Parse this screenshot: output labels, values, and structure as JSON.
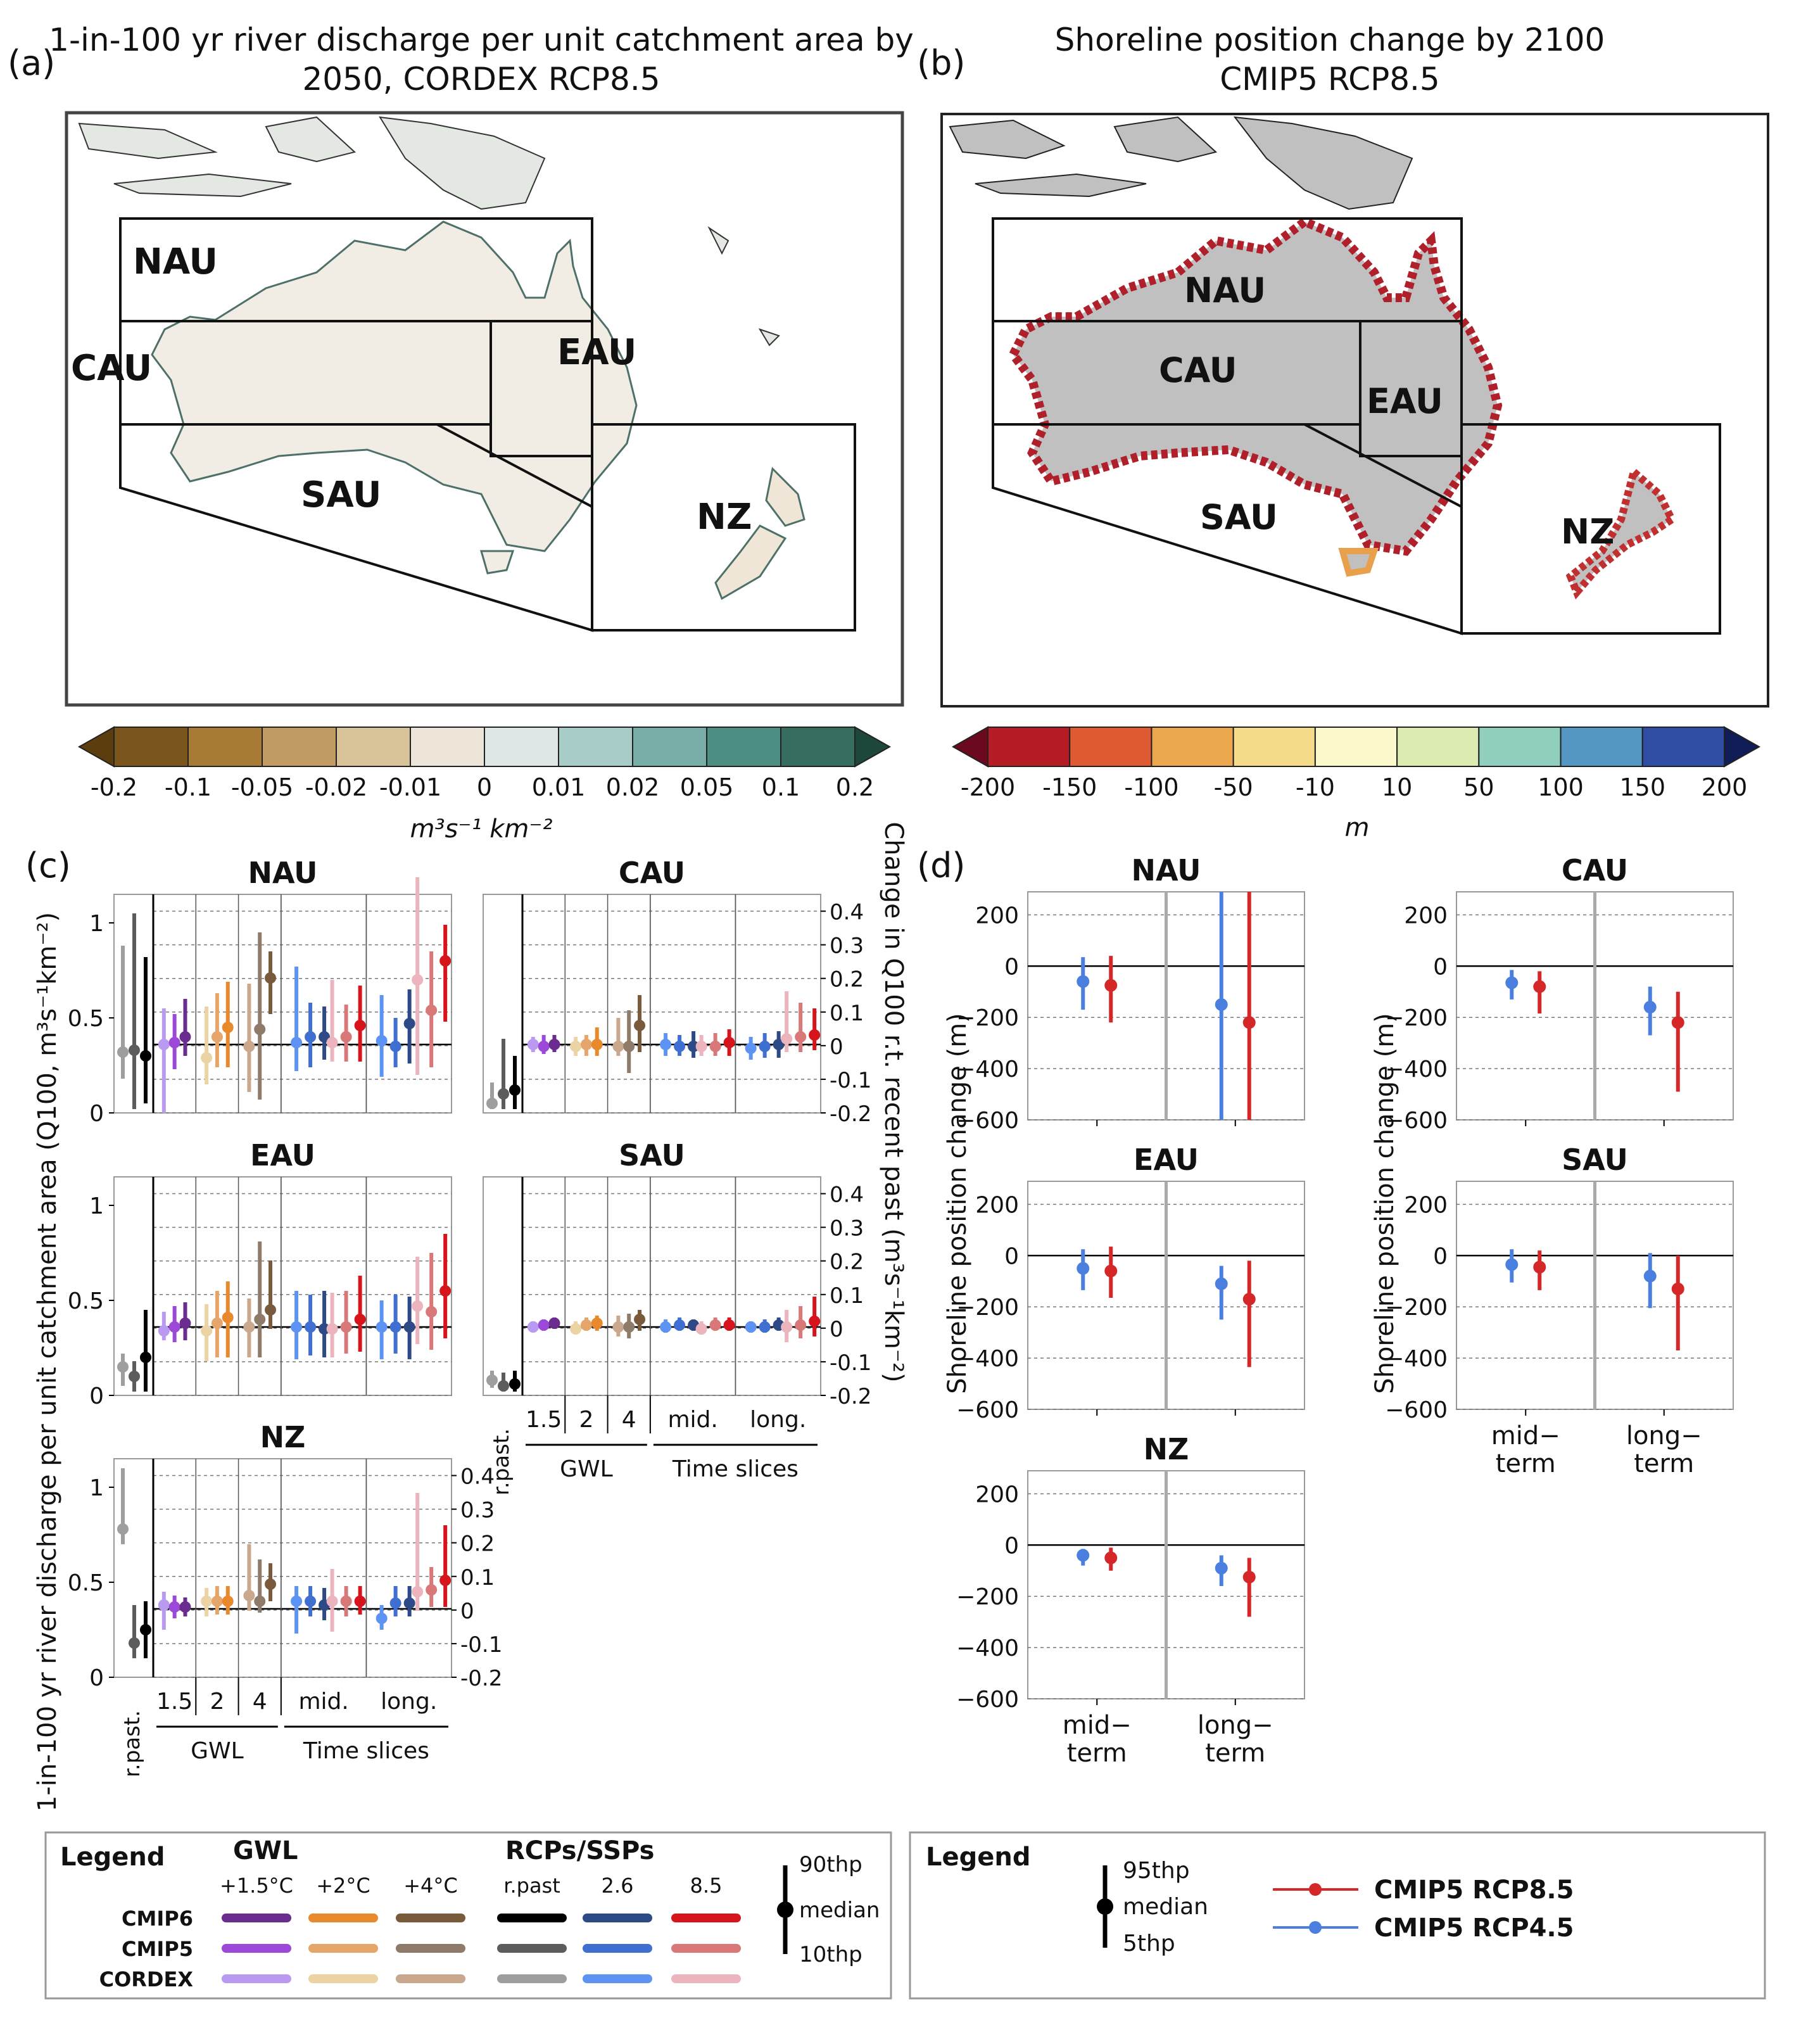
{
  "panel_a": {
    "letter": "(a)",
    "title_line1": "1-in-100 yr river discharge per unit catchment area by",
    "title_line2": "2050, CORDEX RCP8.5",
    "regions": [
      "NAU",
      "CAU",
      "EAU",
      "SAU",
      "NZ"
    ],
    "colorbar": {
      "colors": [
        "#5b3d0e",
        "#7a561c",
        "#a77a36",
        "#c29b64",
        "#d9c49a",
        "#ece5d8",
        "#dfe7e7",
        "#a8ccc7",
        "#78aea7",
        "#4e8d82",
        "#376c61",
        "#1d473b"
      ],
      "ticks": [
        "-0.2",
        "-0.1",
        "-0.05",
        "-0.02",
        "-0.01",
        "0",
        "0.01",
        "0.02",
        "0.05",
        "0.1",
        "0.2"
      ],
      "unit": "m³s⁻¹ km⁻²"
    }
  },
  "panel_b": {
    "letter": "(b)",
    "title_line1": "Shoreline position change by 2100",
    "title_line2": "CMIP5 RCP8.5",
    "regions": [
      "NAU",
      "CAU",
      "EAU",
      "SAU",
      "NZ"
    ],
    "colorbar": {
      "colors": [
        "#6b0a1f",
        "#b51c25",
        "#df5a33",
        "#eba74e",
        "#f4dc8a",
        "#fbf8cb",
        "#dcebb1",
        "#90cfbd",
        "#5497c3",
        "#2e4da3",
        "#101c55"
      ],
      "ticks": [
        "-200",
        "-150",
        "-100",
        "-50",
        "-10",
        "10",
        "50",
        "100",
        "150",
        "200"
      ],
      "unit": "m"
    }
  },
  "panel_c": {
    "letter": "(c)",
    "ylabel": "1-in-100 yr river discharge per unit catchment area (Q100, m³s⁻¹km⁻²)",
    "y2label": "Change in Q100 r.t. recent past (m³s⁻¹km⁻²)",
    "xlabel_rpast": "r.past.",
    "gwl_ticks": [
      "1.5",
      "2",
      "4"
    ],
    "ts_ticks": [
      "mid.",
      "long."
    ],
    "group_gwl": "GWL",
    "group_ts": "Time slices",
    "yticks_left": [
      "0",
      "0.5",
      "1"
    ],
    "yticks_right": [
      "-0.2",
      "-0.1",
      "0",
      "0.1",
      "0.2",
      "0.3",
      "0.4"
    ]
  },
  "panel_d": {
    "letter": "(d)",
    "ylabel": "Shoreline position change (m)",
    "xticks": [
      "mid−\nterm",
      "long−\nterm"
    ],
    "yticks": [
      "200",
      "0",
      "−200",
      "−400",
      "−600"
    ]
  },
  "legend_c": {
    "title": "Legend",
    "gwl_header": "GWL",
    "rcp_header": "RCPs/SSPs",
    "gwl_cols": [
      "+1.5°C",
      "+2°C",
      "+4°C"
    ],
    "rcp_cols": [
      "r.past",
      "2.6",
      "8.5"
    ],
    "rows": [
      "CMIP6",
      "CMIP5",
      "CORDEX"
    ],
    "swatches": [
      [
        "#6a2c8e",
        "#e8892b",
        "#7a5a3c",
        "#000000",
        "#2e4a86",
        "#d6141c"
      ],
      [
        "#9c48d8",
        "#e6a56a",
        "#8f7b6a",
        "#5c5c5c",
        "#3f6fd0",
        "#d97878"
      ],
      [
        "#b99af0",
        "#ecd3a3",
        "#c9a88e",
        "#9e9e9e",
        "#5d93f2",
        "#ecb4bc"
      ]
    ],
    "whisker_top": "90thp",
    "whisker_mid": "median",
    "whisker_bot": "10thp"
  },
  "legend_d": {
    "title": "Legend",
    "whisker_top": "95thp",
    "whisker_mid": "median",
    "whisker_bot": "5thp",
    "series": [
      {
        "name": "CMIP5 RCP8.5",
        "color": "#d62728"
      },
      {
        "name": "CMIP5 RCP4.5",
        "color": "#4a7fe0"
      }
    ]
  },
  "chart_data": [
    {
      "type": "errorbar",
      "panel": "c",
      "units": "m3 s-1 km-2",
      "ylim_left": [
        0,
        1.15
      ],
      "ylim_right": [
        -0.2,
        0.45
      ],
      "baseline_left": 0.36,
      "subplots": [
        {
          "title": "NAU",
          "rpast": [
            [
              0.32,
              0.18,
              0.88
            ],
            [
              0.33,
              0.02,
              1.05
            ],
            [
              0.3,
              0.05,
              0.82
            ]
          ],
          "gwl": [
            [
              [
                0.36,
                0.0,
                0.55
              ],
              [
                0.37,
                0.23,
                0.52
              ],
              [
                0.4,
                0.3,
                0.6
              ]
            ],
            [
              [
                0.29,
                0.15,
                0.56
              ],
              [
                0.4,
                0.24,
                0.63
              ],
              [
                0.45,
                0.24,
                0.69
              ]
            ],
            [
              [
                0.35,
                0.11,
                0.68
              ],
              [
                0.44,
                0.07,
                0.95
              ],
              [
                0.71,
                0.52,
                0.85
              ]
            ]
          ],
          "ts": [
            [
              [
                0.37,
                0.22,
                0.77
              ],
              [
                0.4,
                0.24,
                0.58
              ],
              [
                0.4,
                0.28,
                0.56
              ]
            ],
            [
              [
                0.37,
                0.27,
                0.7
              ],
              [
                0.4,
                0.27,
                0.57
              ],
              [
                0.46,
                0.27,
                0.67
              ]
            ],
            [
              [
                0.38,
                0.19,
                0.62
              ],
              [
                0.35,
                0.24,
                0.5
              ],
              [
                0.47,
                0.26,
                0.65
              ]
            ],
            [
              [
                0.7,
                0.2,
                1.24
              ],
              [
                0.54,
                0.24,
                0.85
              ],
              [
                0.8,
                0.48,
                0.99
              ]
            ]
          ]
        },
        {
          "title": "CAU",
          "rpast": [
            [
              0.05,
              0.02,
              0.16
            ],
            [
              0.1,
              0.02,
              0.39
            ],
            [
              0.12,
              0.02,
              0.3
            ]
          ],
          "gwl": [
            [
              [
                0.36,
                0.32,
                0.4
              ],
              [
                0.35,
                0.31,
                0.41
              ],
              [
                0.36,
                0.32,
                0.41
              ]
            ],
            [
              [
                0.35,
                0.3,
                0.4
              ],
              [
                0.36,
                0.3,
                0.41
              ],
              [
                0.36,
                0.3,
                0.45
              ]
            ],
            [
              [
                0.35,
                0.3,
                0.5
              ],
              [
                0.35,
                0.21,
                0.54
              ],
              [
                0.46,
                0.32,
                0.62
              ]
            ]
          ],
          "ts": [
            [
              [
                0.36,
                0.3,
                0.42
              ],
              [
                0.35,
                0.3,
                0.41
              ],
              [
                0.35,
                0.29,
                0.43
              ]
            ],
            [
              [
                0.35,
                0.3,
                0.41
              ],
              [
                0.35,
                0.3,
                0.42
              ],
              [
                0.37,
                0.3,
                0.44
              ]
            ],
            [
              [
                0.34,
                0.28,
                0.4
              ],
              [
                0.35,
                0.29,
                0.42
              ],
              [
                0.36,
                0.29,
                0.43
              ]
            ],
            [
              [
                0.39,
                0.32,
                0.64
              ],
              [
                0.4,
                0.32,
                0.58
              ],
              [
                0.41,
                0.33,
                0.55
              ]
            ]
          ]
        },
        {
          "title": "EAU",
          "rpast": [
            [
              0.15,
              0.05,
              0.22
            ],
            [
              0.1,
              0.02,
              0.18
            ],
            [
              0.2,
              0.02,
              0.45
            ]
          ],
          "gwl": [
            [
              [
                0.34,
                0.29,
                0.44
              ],
              [
                0.36,
                0.28,
                0.47
              ],
              [
                0.38,
                0.29,
                0.49
              ]
            ],
            [
              [
                0.34,
                0.18,
                0.48
              ],
              [
                0.38,
                0.2,
                0.55
              ],
              [
                0.41,
                0.2,
                0.6
              ]
            ],
            [
              [
                0.36,
                0.2,
                0.51
              ],
              [
                0.4,
                0.2,
                0.81
              ],
              [
                0.45,
                0.35,
                0.71
              ]
            ]
          ],
          "ts": [
            [
              [
                0.36,
                0.19,
                0.55
              ],
              [
                0.36,
                0.21,
                0.53
              ],
              [
                0.35,
                0.2,
                0.55
              ]
            ],
            [
              [
                0.35,
                0.2,
                0.54
              ],
              [
                0.36,
                0.22,
                0.55
              ],
              [
                0.4,
                0.23,
                0.63
              ]
            ],
            [
              [
                0.36,
                0.19,
                0.5
              ],
              [
                0.36,
                0.22,
                0.53
              ],
              [
                0.36,
                0.19,
                0.52
              ]
            ],
            [
              [
                0.47,
                0.27,
                0.73
              ],
              [
                0.44,
                0.24,
                0.75
              ],
              [
                0.55,
                0.3,
                0.85
              ]
            ]
          ]
        },
        {
          "title": "SAU",
          "rpast": [
            [
              0.08,
              0.04,
              0.13
            ],
            [
              0.05,
              0.02,
              0.12
            ],
            [
              0.06,
              0.02,
              0.13
            ]
          ],
          "gwl": [
            [
              [
                0.36,
                0.34,
                0.39
              ],
              [
                0.37,
                0.34,
                0.4
              ],
              [
                0.38,
                0.35,
                0.41
              ]
            ],
            [
              [
                0.35,
                0.32,
                0.39
              ],
              [
                0.37,
                0.34,
                0.41
              ],
              [
                0.38,
                0.34,
                0.42
              ]
            ],
            [
              [
                0.36,
                0.31,
                0.42
              ],
              [
                0.36,
                0.3,
                0.43
              ],
              [
                0.4,
                0.34,
                0.45
              ]
            ]
          ],
          "ts": [
            [
              [
                0.36,
                0.33,
                0.4
              ],
              [
                0.37,
                0.34,
                0.41
              ],
              [
                0.37,
                0.34,
                0.4
              ]
            ],
            [
              [
                0.35,
                0.32,
                0.39
              ],
              [
                0.37,
                0.34,
                0.41
              ],
              [
                0.37,
                0.34,
                0.41
              ]
            ],
            [
              [
                0.36,
                0.33,
                0.39
              ],
              [
                0.36,
                0.33,
                0.4
              ],
              [
                0.37,
                0.34,
                0.41
              ]
            ],
            [
              [
                0.36,
                0.28,
                0.45
              ],
              [
                0.37,
                0.3,
                0.47
              ],
              [
                0.39,
                0.31,
                0.52
              ]
            ]
          ]
        },
        {
          "title": "NZ",
          "rpast": [
            [
              0.78,
              0.7,
              1.1
            ],
            [
              0.18,
              0.1,
              0.38
            ],
            [
              0.25,
              0.1,
              0.4
            ]
          ],
          "gwl": [
            [
              [
                0.38,
                0.25,
                0.45
              ],
              [
                0.37,
                0.31,
                0.43
              ],
              [
                0.37,
                0.32,
                0.42
              ]
            ],
            [
              [
                0.4,
                0.32,
                0.47
              ],
              [
                0.4,
                0.33,
                0.48
              ],
              [
                0.4,
                0.33,
                0.48
              ]
            ],
            [
              [
                0.43,
                0.35,
                0.7
              ],
              [
                0.4,
                0.34,
                0.62
              ],
              [
                0.49,
                0.4,
                0.6
              ]
            ]
          ],
          "ts": [
            [
              [
                0.4,
                0.23,
                0.48
              ],
              [
                0.4,
                0.32,
                0.48
              ],
              [
                0.38,
                0.3,
                0.47
              ]
            ],
            [
              [
                0.4,
                0.24,
                0.57
              ],
              [
                0.4,
                0.32,
                0.48
              ],
              [
                0.4,
                0.33,
                0.48
              ]
            ],
            [
              [
                0.31,
                0.25,
                0.38
              ],
              [
                0.39,
                0.32,
                0.48
              ],
              [
                0.39,
                0.32,
                0.48
              ]
            ],
            [
              [
                0.45,
                0.35,
                0.97
              ],
              [
                0.46,
                0.37,
                0.58
              ],
              [
                0.51,
                0.37,
                0.8
              ]
            ]
          ]
        }
      ]
    },
    {
      "type": "errorbar",
      "panel": "d",
      "units": "m",
      "ylim": [
        -600,
        290
      ],
      "categories": [
        "mid−term",
        "long−term"
      ],
      "series_names": [
        "CMIP5 RCP4.5",
        "CMIP5 RCP8.5"
      ],
      "subplots": [
        {
          "title": "NAU",
          "rcp45": [
            [
              -60,
              -170,
              35
            ],
            [
              -150,
              -640,
              290
            ]
          ],
          "rcp85": [
            [
              -75,
              -220,
              40
            ],
            [
              -220,
              -640,
              290
            ]
          ]
        },
        {
          "title": "CAU",
          "rcp45": [
            [
              -65,
              -130,
              -15
            ],
            [
              -160,
              -270,
              -80
            ]
          ],
          "rcp85": [
            [
              -80,
              -185,
              -20
            ],
            [
              -220,
              -490,
              -100
            ]
          ]
        },
        {
          "title": "EAU",
          "rcp45": [
            [
              -50,
              -135,
              25
            ],
            [
              -110,
              -250,
              -40
            ]
          ],
          "rcp85": [
            [
              -60,
              -165,
              35
            ],
            [
              -170,
              -435,
              -20
            ]
          ]
        },
        {
          "title": "SAU",
          "rcp45": [
            [
              -35,
              -105,
              25
            ],
            [
              -80,
              -205,
              10
            ]
          ],
          "rcp85": [
            [
              -45,
              -135,
              20
            ],
            [
              -130,
              -370,
              0
            ]
          ]
        },
        {
          "title": "NZ",
          "rcp45": [
            [
              -40,
              -80,
              -15
            ],
            [
              -90,
              -160,
              -40
            ]
          ],
          "rcp85": [
            [
              -50,
              -100,
              -10
            ],
            [
              -125,
              -280,
              -50
            ]
          ]
        }
      ]
    }
  ]
}
